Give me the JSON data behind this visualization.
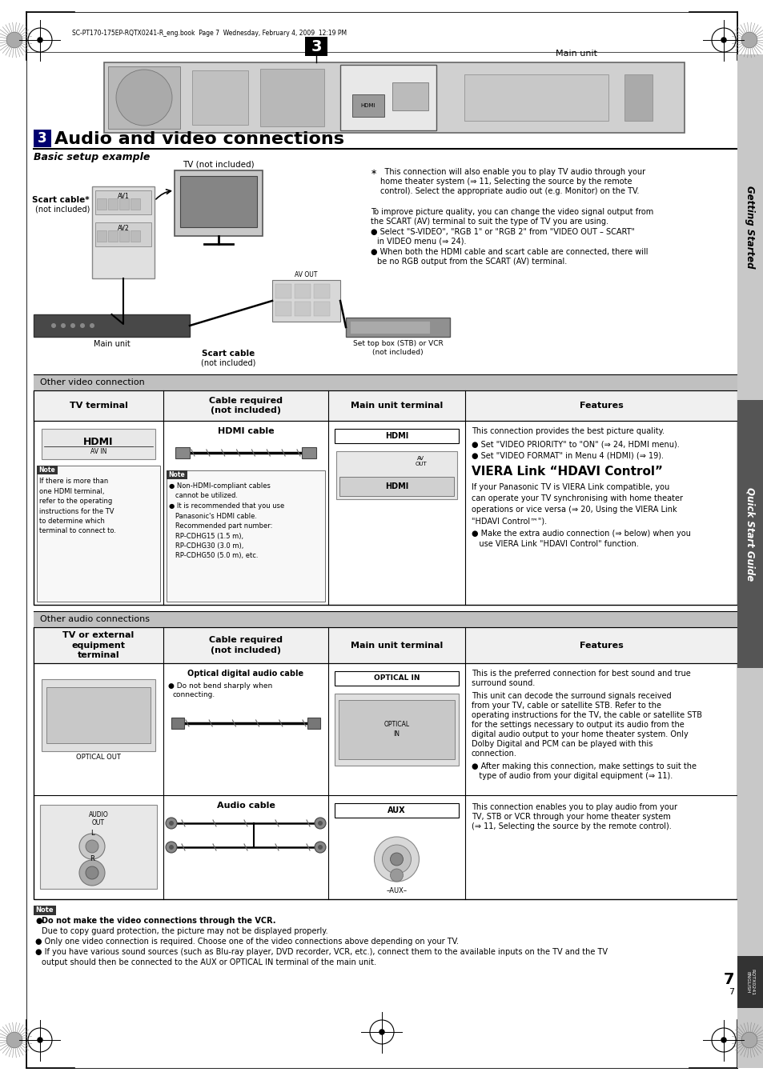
{
  "page_bg": "#ffffff",
  "header_text": "SC-PT170-175EP-RQTX0241-R_eng.book  Page 7  Wednesday, February 4, 2009  12:19 PM",
  "title_text": "Audio and video connections",
  "subtitle": "Basic setup example",
  "right_tab_top": "Getting Started",
  "right_tab_bottom": "Quick Start Guide",
  "other_video_label": "Other video connection",
  "other_audio_label": "Other audio connections",
  "video_table_headers": [
    "TV terminal",
    "Cable required\n(not included)",
    "Main unit terminal",
    "Features"
  ],
  "audio_table_headers": [
    "TV or external\nequipment\nterminal",
    "Cable required\n(not included)",
    "Main unit terminal",
    "Features"
  ],
  "note_bold_line": "●Do not make the video connections through the VCR.",
  "note_line2": "  Due to copy guard protection, the picture may not be displayed properly.",
  "note_line3": "●Only one video connection is required. Choose one of the video connections above depending on your TV.",
  "note_line4": "●If you have various sound sources (such as Blu-ray player, DVD recorder, VCR, etc.), connect them to the available inputs on the TV and the TV",
  "note_line5": "  output should then be connected to the AUX or OPTICAL IN terminal of the main unit.",
  "fig_width": 9.54,
  "fig_height": 13.5,
  "dpi": 100
}
